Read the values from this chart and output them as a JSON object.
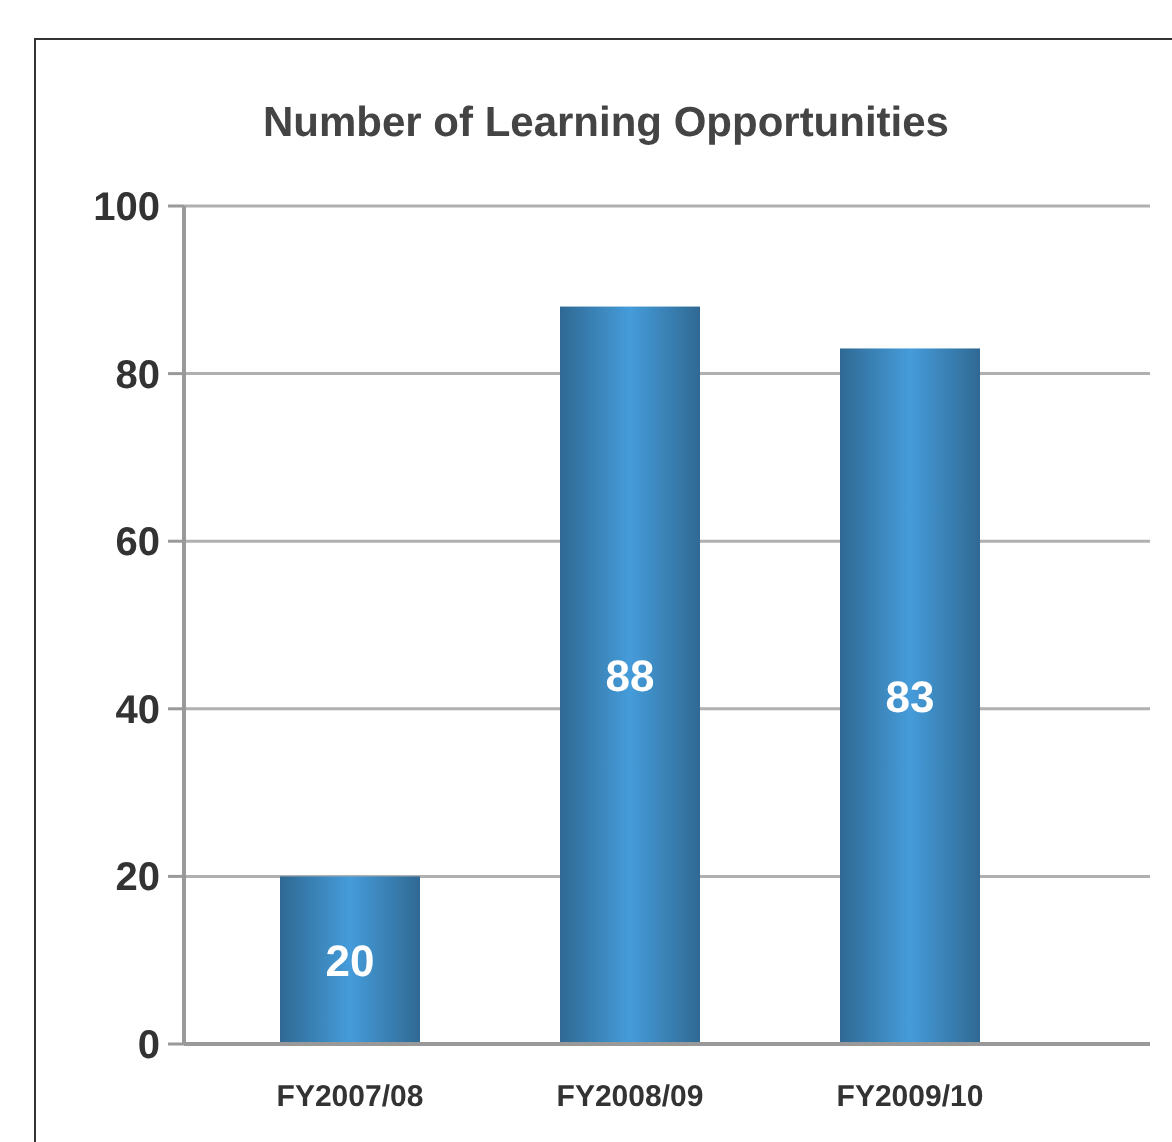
{
  "chart_data": {
    "type": "bar",
    "title": "Number of Learning Opportunities",
    "categories": [
      "FY2007/08",
      "FY2008/09",
      "FY2009/10"
    ],
    "values": [
      20,
      88,
      83
    ],
    "color": "#3e8cc4",
    "ylim": [
      0,
      100
    ],
    "yticks": [
      0,
      20,
      40,
      60,
      80,
      100
    ],
    "grid": "y",
    "data_labels": true
  }
}
